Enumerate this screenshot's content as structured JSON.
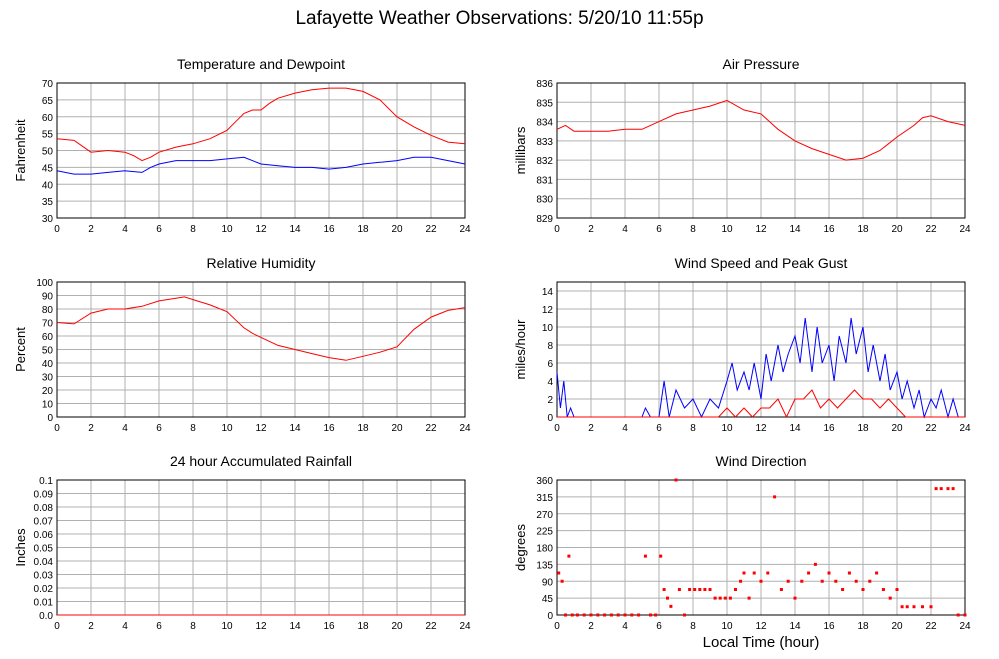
{
  "page": {
    "title": "Lafayette Weather Observations: 5/20/10 11:55p",
    "x_axis_label": "Local Time (hour)"
  },
  "chart_data": [
    {
      "id": "temp",
      "type": "line",
      "title": "Temperature and Dewpoint",
      "ylabel": "Fahrenheit",
      "xlim": [
        0,
        24
      ],
      "ylim": [
        30,
        70
      ],
      "x_ticks": [
        "0",
        "2",
        "4",
        "6",
        "8",
        "10",
        "12",
        "14",
        "16",
        "18",
        "20",
        "22",
        "24"
      ],
      "y_ticks": [
        "30",
        "35",
        "40",
        "45",
        "50",
        "55",
        "60",
        "65",
        "70"
      ],
      "grid": true,
      "series": [
        {
          "color": "#ff0000",
          "x": [
            0,
            1,
            2,
            3,
            4,
            4.5,
            5,
            5.5,
            6,
            7,
            8,
            9,
            10,
            10.5,
            11,
            11.5,
            12,
            12.5,
            13,
            14,
            15,
            16,
            17,
            18,
            19,
            20,
            21,
            22,
            23,
            24
          ],
          "y": [
            53.5,
            53,
            49.5,
            50,
            49.5,
            48.5,
            47,
            48,
            49.5,
            51,
            52,
            53.5,
            56,
            58.5,
            61,
            62,
            62,
            64,
            65.5,
            67,
            68,
            68.5,
            68.5,
            67.5,
            65,
            60,
            57,
            54.5,
            52.5,
            52
          ]
        },
        {
          "color": "#0000ff",
          "x": [
            0,
            1,
            2,
            3,
            4,
            5,
            5.5,
            6,
            7,
            8,
            9,
            10,
            11,
            12,
            13,
            14,
            15,
            16,
            17,
            18,
            19,
            20,
            21,
            22,
            23,
            24
          ],
          "y": [
            44,
            43,
            43,
            43.5,
            44,
            43.5,
            45,
            46,
            47,
            47,
            47,
            47.5,
            48,
            46,
            45.5,
            45,
            45,
            44.5,
            45,
            46,
            46.5,
            47,
            48,
            48,
            47,
            46
          ]
        }
      ]
    },
    {
      "id": "pressure",
      "type": "line",
      "title": "Air Pressure",
      "ylabel": "millibars",
      "xlim": [
        0,
        24
      ],
      "ylim": [
        829,
        836
      ],
      "x_ticks": [
        "0",
        "2",
        "4",
        "6",
        "8",
        "10",
        "12",
        "14",
        "16",
        "18",
        "20",
        "22",
        "24"
      ],
      "y_ticks": [
        "829",
        "830",
        "831",
        "832",
        "833",
        "834",
        "835",
        "836"
      ],
      "grid": true,
      "series": [
        {
          "color": "#ff0000",
          "x": [
            0,
            0.5,
            1,
            2,
            3,
            4,
            5,
            5.5,
            6,
            7,
            8,
            9,
            10,
            11,
            12,
            13,
            14,
            15,
            16,
            17,
            18,
            19,
            20,
            21,
            21.5,
            22,
            23,
            24
          ],
          "y": [
            833.6,
            833.8,
            833.5,
            833.5,
            833.5,
            833.6,
            833.6,
            833.8,
            834,
            834.4,
            834.6,
            834.8,
            835.1,
            834.6,
            834.4,
            833.6,
            833,
            832.6,
            832.3,
            832,
            832.1,
            832.5,
            833.2,
            833.8,
            834.2,
            834.3,
            834,
            833.8
          ]
        }
      ]
    },
    {
      "id": "humidity",
      "type": "line",
      "title": "Relative Humidity",
      "ylabel": "Percent",
      "xlim": [
        0,
        24
      ],
      "ylim": [
        0,
        100
      ],
      "x_ticks": [
        "0",
        "2",
        "4",
        "6",
        "8",
        "10",
        "12",
        "14",
        "16",
        "18",
        "20",
        "22",
        "24"
      ],
      "y_ticks": [
        "0",
        "10",
        "20",
        "30",
        "40",
        "50",
        "60",
        "70",
        "80",
        "90",
        "100"
      ],
      "grid": true,
      "series": [
        {
          "color": "#ff0000",
          "x": [
            0,
            1,
            2,
            3,
            4,
            5,
            6,
            7,
            7.5,
            8,
            9,
            10,
            10.5,
            11,
            11.5,
            12,
            12.5,
            13,
            14,
            15,
            16,
            17,
            18,
            19,
            20,
            21,
            22,
            23,
            24
          ],
          "y": [
            70,
            69,
            77,
            80,
            80,
            82,
            86,
            88,
            89,
            87,
            83,
            78,
            72,
            66,
            62,
            59,
            56,
            53,
            50,
            47,
            44,
            42,
            45,
            48,
            52,
            65,
            74,
            79,
            81
          ]
        }
      ]
    },
    {
      "id": "wind",
      "type": "line",
      "title": "Wind Speed and Peak Gust",
      "ylabel": "miles/hour",
      "xlim": [
        0,
        24
      ],
      "ylim": [
        0,
        15
      ],
      "x_ticks": [
        "0",
        "2",
        "4",
        "6",
        "8",
        "10",
        "12",
        "14",
        "16",
        "18",
        "20",
        "22",
        "24"
      ],
      "y_ticks": [
        "0",
        "2",
        "4",
        "6",
        "8",
        "10",
        "12",
        "14"
      ],
      "grid": true,
      "series": [
        {
          "color": "#0000ff",
          "x": [
            0,
            0.2,
            0.4,
            0.6,
            0.8,
            1,
            2,
            3,
            4,
            5,
            5.2,
            5.5,
            6,
            6.3,
            6.6,
            7,
            7.5,
            8,
            8.5,
            9,
            9.5,
            10,
            10.3,
            10.6,
            11,
            11.3,
            11.6,
            12,
            12.3,
            12.6,
            13,
            13.3,
            13.6,
            14,
            14.3,
            14.6,
            15,
            15.3,
            15.6,
            16,
            16.3,
            16.6,
            17,
            17.3,
            17.6,
            18,
            18.3,
            18.6,
            19,
            19.3,
            19.6,
            20,
            20.3,
            20.6,
            21,
            21.3,
            21.6,
            22,
            22.3,
            22.6,
            23,
            23.3,
            23.6,
            24
          ],
          "y": [
            5,
            1,
            4,
            0,
            1,
            0,
            0,
            0,
            0,
            0,
            1,
            0,
            0,
            4,
            0,
            3,
            1,
            2,
            0,
            2,
            1,
            4,
            6,
            3,
            5,
            3,
            6,
            2,
            7,
            4,
            8,
            5,
            7,
            9,
            6,
            11,
            5,
            10,
            6,
            8,
            4,
            9,
            6,
            11,
            7,
            10,
            5,
            8,
            4,
            7,
            3,
            5,
            2,
            4,
            1,
            3,
            0,
            2,
            1,
            3,
            0,
            2,
            0,
            0
          ]
        },
        {
          "color": "#ff0000",
          "x": [
            0,
            5,
            9.5,
            10,
            10.5,
            11,
            11.5,
            12,
            12.5,
            13,
            13.5,
            14,
            14.5,
            15,
            15.5,
            16,
            16.5,
            17,
            17.5,
            18,
            18.5,
            19,
            19.5,
            20,
            20.5,
            21,
            24
          ],
          "y": [
            0,
            0,
            0,
            1,
            0,
            1,
            0,
            1,
            1,
            2,
            0,
            2,
            2,
            3,
            1,
            2,
            1,
            2,
            3,
            2,
            2,
            1,
            2,
            1,
            0,
            0,
            0
          ]
        }
      ]
    },
    {
      "id": "rain",
      "type": "line",
      "title": "24 hour Accumulated Rainfall",
      "ylabel": "Inches",
      "xlim": [
        0,
        24
      ],
      "ylim": [
        0,
        0.1
      ],
      "x_ticks": [
        "0",
        "2",
        "4",
        "6",
        "8",
        "10",
        "12",
        "14",
        "16",
        "18",
        "20",
        "22",
        "24"
      ],
      "y_ticks": [
        "0.0",
        "0.01",
        "0.02",
        "0.03",
        "0.04",
        "0.05",
        "0.06",
        "0.07",
        "0.08",
        "0.09",
        "0.1"
      ],
      "grid": true,
      "series": [
        {
          "color": "#ff0000",
          "x": [
            0,
            24
          ],
          "y": [
            0,
            0
          ]
        }
      ]
    },
    {
      "id": "direction",
      "type": "scatter",
      "title": "Wind Direction",
      "ylabel": "degrees",
      "xlim": [
        0,
        24
      ],
      "ylim": [
        0,
        360
      ],
      "x_ticks": [
        "0",
        "2",
        "4",
        "6",
        "8",
        "10",
        "12",
        "14",
        "16",
        "18",
        "20",
        "22",
        "24"
      ],
      "y_ticks": [
        "0",
        "45",
        "90",
        "135",
        "180",
        "225",
        "270",
        "315",
        "360"
      ],
      "grid": true,
      "series": [
        {
          "color": "#ff0000",
          "x": [
            0.1,
            0.3,
            0.5,
            0.7,
            0.9,
            1.2,
            1.6,
            2,
            2.4,
            2.8,
            3.2,
            3.6,
            4,
            4.4,
            4.8,
            5.2,
            5.5,
            5.8,
            6.1,
            6.3,
            6.5,
            6.7,
            7,
            7.2,
            7.5,
            7.8,
            8.1,
            8.4,
            8.7,
            9,
            9.3,
            9.6,
            9.9,
            10.2,
            10.5,
            10.8,
            11,
            11.3,
            11.6,
            12,
            12.4,
            12.8,
            13.2,
            13.6,
            14,
            14.4,
            14.8,
            15.2,
            15.6,
            16,
            16.4,
            16.8,
            17.2,
            17.6,
            18,
            18.4,
            18.8,
            19.2,
            19.6,
            20,
            20.3,
            20.6,
            21,
            21.5,
            22,
            22.3,
            22.6,
            23,
            23.3,
            23.6,
            24
          ],
          "y": [
            112,
            90,
            0,
            157,
            0,
            0,
            0,
            0,
            0,
            0,
            0,
            0,
            0,
            0,
            0,
            157,
            0,
            0,
            157,
            68,
            45,
            23,
            360,
            68,
            0,
            68,
            68,
            68,
            68,
            68,
            45,
            45,
            45,
            45,
            68,
            90,
            112,
            45,
            112,
            90,
            112,
            315,
            68,
            90,
            45,
            90,
            112,
            135,
            90,
            112,
            90,
            68,
            112,
            90,
            68,
            90,
            112,
            68,
            45,
            68,
            22,
            22,
            22,
            22,
            22,
            337,
            337,
            337,
            337,
            0,
            0
          ]
        }
      ]
    }
  ]
}
